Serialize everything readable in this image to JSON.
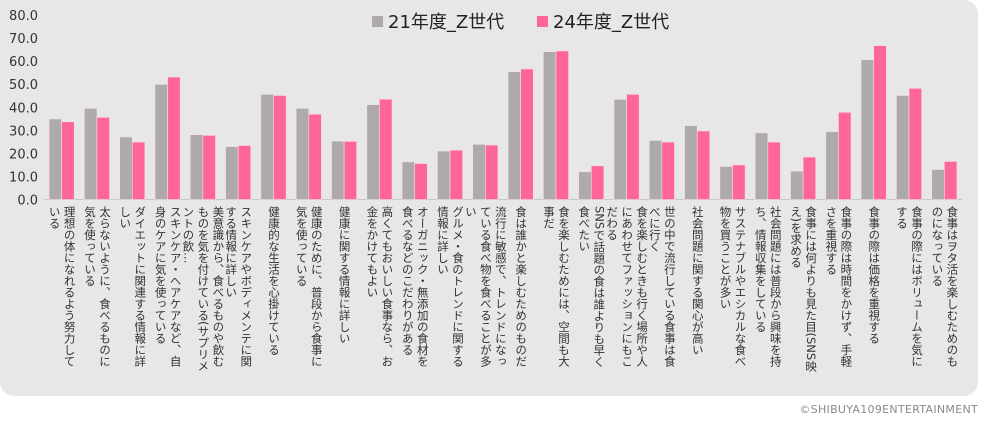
{
  "chart_data": {
    "type": "bar",
    "title": "",
    "xlabel": "",
    "ylabel": "",
    "ylim": [
      0,
      80
    ],
    "yticks": [
      "0.0",
      "10.0",
      "20.0",
      "30.0",
      "40.0",
      "50.0",
      "60.0",
      "70.0",
      "80.0"
    ],
    "grid": false,
    "legend_position": "top",
    "categories": [
      "理想の体になれるよう努力している",
      "太らないように、食べるものに気を使っている",
      "ダイエットに関連する情報に詳しい",
      "スキンケア・ヘアケアなど、自身のケアに気を使っている",
      "美意識から、食べるものや飲むものを気を付けている(サプリメントの飲…",
      "スキンケアやボディメンテに関する情報に詳しい",
      "健康的な生活を心掛けている",
      "健康のために、普段から食事に気を使っている",
      "健康に関する情報に詳しい",
      "高くてもおいしい食事なら、お金をかけてもよい",
      "オーガニック・無添加の食材を食べるなどのこだわりがある",
      "グルメ・食のトレンドに関する情報に詳しい",
      "流行に敏感で、トレンドになっている食べ物を食べることが多い",
      "食は誰かと楽しむためのものだ",
      "食を楽しむためには、空間も大事だ",
      "SNSで話題の食は誰よりも早く食べたい",
      "食を楽しむときも行く場所や人にあわせてファッションにもこだわる",
      "世の中で流行している食事は食べに行く",
      "社会問題に関する関心が高い",
      "サステナブルやエシカルな食べ物を買うことが多い",
      "社会問題には普段から興味を持ち、情報収集をしている",
      "食事には何よりも見た目(SNS映え)を求める",
      "食事の際は時間をかけず、手軽さを重視する",
      "食事の際は価格を重視する",
      "食事の際にはボリュームを気にする",
      "食事はヲタ活を楽しむためのものになっている"
    ],
    "series": [
      {
        "name": "21年度_Z世代",
        "color": "#aeaaa9",
        "values": [
          34.9,
          39.5,
          27.1,
          49.9,
          28.1,
          22.9,
          45.6,
          39.5,
          25.3,
          41.1,
          16.3,
          21.0,
          23.9,
          55.4,
          64.1,
          12.0,
          43.4,
          25.6,
          32.0,
          14.3,
          28.9,
          12.3,
          29.4,
          60.6,
          45.1,
          13.0
        ]
      },
      {
        "name": "24年度_Z世代",
        "color": "#fe6698",
        "values": [
          33.7,
          35.6,
          24.9,
          53.1,
          27.8,
          23.4,
          45.1,
          37.0,
          25.2,
          43.5,
          15.6,
          21.4,
          23.6,
          56.6,
          64.4,
          14.6,
          45.6,
          24.9,
          29.7,
          15.0,
          24.9,
          18.4,
          37.8,
          66.7,
          48.2,
          16.5
        ]
      }
    ]
  },
  "copyright": "©SHIBUYA109ENTERTAINMENT"
}
